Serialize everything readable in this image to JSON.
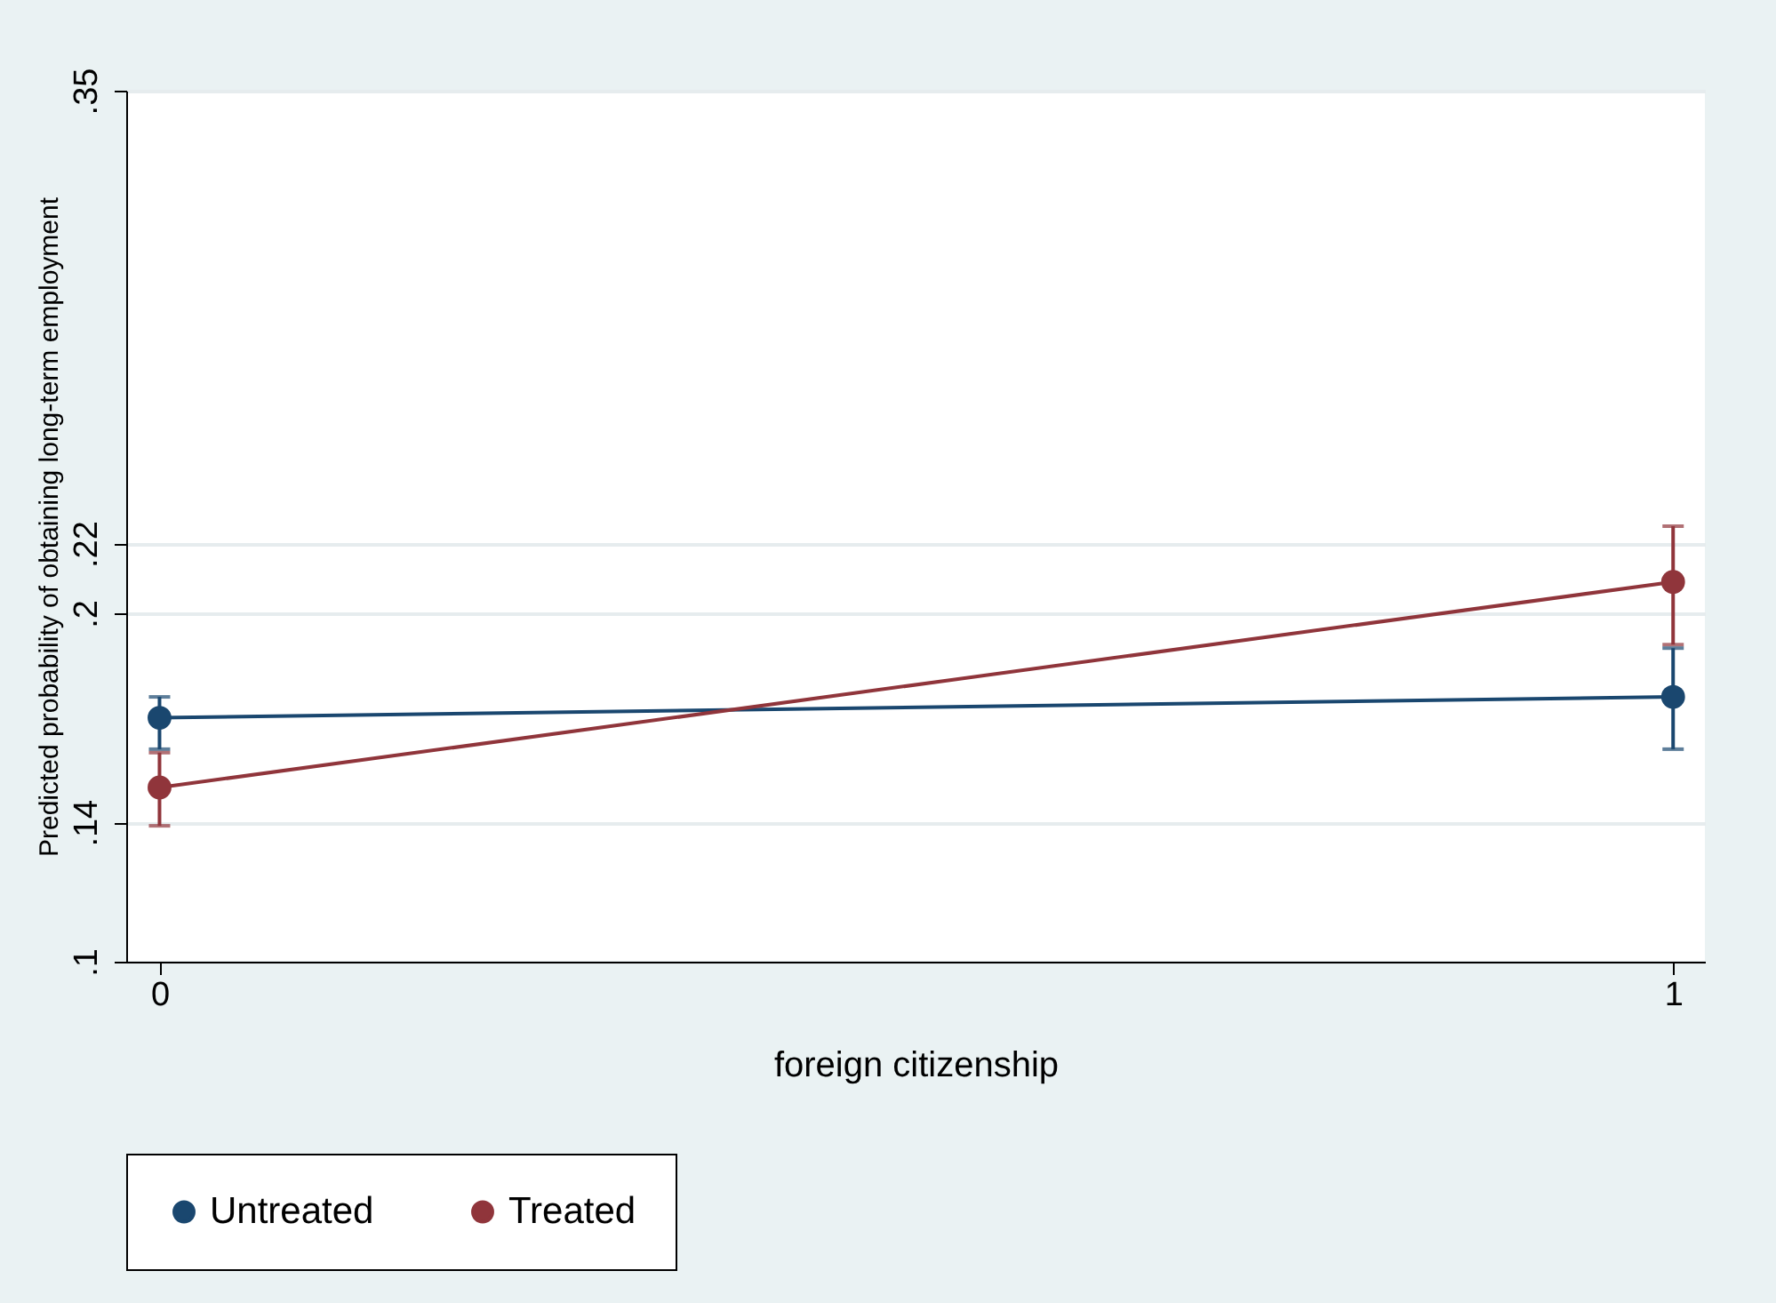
{
  "chart_data": {
    "type": "line",
    "xlabel": "foreign citizenship",
    "ylabel": "Predicted probability of obtaining long-term employment",
    "x": [
      0,
      1
    ],
    "series": [
      {
        "name": "Untreated",
        "color": "#1a476f",
        "values": [
          0.17,
          0.176
        ],
        "errors": [
          [
            0.161,
            0.176
          ],
          [
            0.161,
            0.19
          ]
        ]
      },
      {
        "name": "Treated",
        "color": "#90353b",
        "values": [
          0.15,
          0.209
        ],
        "errors": [
          [
            0.139,
            0.16
          ],
          [
            0.191,
            0.225
          ]
        ]
      }
    ],
    "xlim": [
      -0.022,
      1.021
    ],
    "xticks": [
      0,
      1
    ],
    "ylim": [
      0.1,
      0.35
    ],
    "yticks": [
      {
        "value": 0.1,
        "label": ".1"
      },
      {
        "value": 0.14,
        "label": ".14"
      },
      {
        "value": 0.2,
        "label": ".2"
      },
      {
        "value": 0.22,
        "label": ".22"
      },
      {
        "value": 0.35,
        "label": ".35"
      }
    ],
    "grid": "y",
    "legend": "bottom",
    "marker": "circle",
    "line_style": "solid"
  }
}
